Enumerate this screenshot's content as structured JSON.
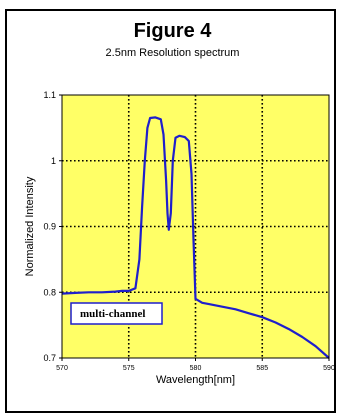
{
  "chart_data": {
    "type": "line",
    "title": "Figure 4",
    "subtitle": "2.5nm Resolution spectrum",
    "xlabel": "Wavelength[nm]",
    "ylabel": "Normalized Intensity",
    "xlim": [
      570,
      590
    ],
    "ylim": [
      0.7,
      1.1
    ],
    "xticks": [
      "570",
      "575",
      "580",
      "585",
      "590"
    ],
    "yticks": [
      "0.7",
      "0.8",
      "0.9",
      "1",
      "1.1"
    ],
    "grid": true,
    "legend_position": "bottom-left",
    "colors": {
      "plot_background": "#FFFF66",
      "line": "#1F1FCC",
      "grid": "#000000"
    },
    "series": [
      {
        "name": "multi-channel",
        "x": [
          570,
          571,
          572,
          573,
          574,
          574.5,
          575,
          575.5,
          575.8,
          576.0,
          576.2,
          576.4,
          576.6,
          577.0,
          577.4,
          577.6,
          577.8,
          577.9,
          578.0,
          578.15,
          578.3,
          578.5,
          578.8,
          579.2,
          579.5,
          579.7,
          579.85,
          580.0,
          580.5,
          581,
          582,
          583,
          584,
          585,
          586,
          587,
          588,
          589,
          590
        ],
        "y": [
          0.798,
          0.799,
          0.8,
          0.8,
          0.801,
          0.802,
          0.802,
          0.806,
          0.85,
          0.93,
          1.0,
          1.05,
          1.065,
          1.066,
          1.063,
          1.04,
          0.97,
          0.92,
          0.895,
          0.92,
          1.0,
          1.035,
          1.038,
          1.036,
          1.03,
          0.98,
          0.88,
          0.79,
          0.784,
          0.782,
          0.778,
          0.774,
          0.768,
          0.762,
          0.754,
          0.744,
          0.732,
          0.718,
          0.7
        ]
      }
    ]
  }
}
